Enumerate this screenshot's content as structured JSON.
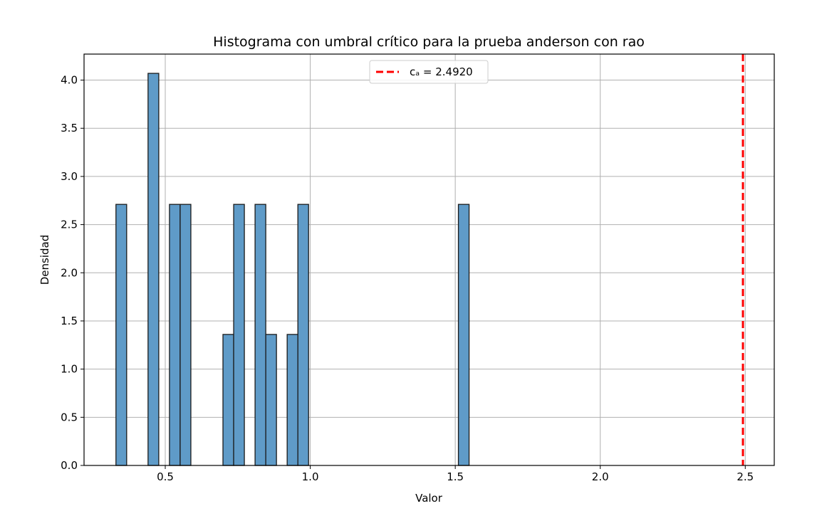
{
  "chart_data": {
    "type": "bar",
    "title": "Histograma con umbral crítico para la prueba anderson con  rao",
    "xlabel": "Valor",
    "ylabel": "Densidad",
    "xlim": [
      0.22,
      2.6
    ],
    "ylim": [
      0,
      4.27
    ],
    "xticks": [
      0.5,
      1.0,
      1.5,
      2.0,
      2.5
    ],
    "xtick_labels": [
      "0.5",
      "1.0",
      "1.5",
      "2.0",
      "2.5"
    ],
    "yticks": [
      0.0,
      0.5,
      1.0,
      1.5,
      2.0,
      2.5,
      3.0,
      3.5,
      4.0
    ],
    "ytick_labels": [
      "0.0",
      "0.5",
      "1.0",
      "1.5",
      "2.0",
      "2.5",
      "3.0",
      "3.5",
      "4.0"
    ],
    "grid": true,
    "bin_start": 0.33,
    "bin_width": 0.0369,
    "values": [
      2.71,
      0,
      0,
      4.07,
      0,
      2.71,
      2.71,
      0,
      0,
      0,
      1.36,
      2.71,
      0,
      2.71,
      1.36,
      0,
      1.36,
      2.71,
      0,
      0,
      0,
      0,
      0,
      0,
      0,
      0,
      0,
      0,
      0,
      0,
      0,
      0,
      2.71
    ],
    "bar_color": "#5f9bc8",
    "bar_edge_color": "#1a1a1a",
    "critical_line": {
      "x": 2.492,
      "color": "#ff0000",
      "style": "dashed",
      "label": "cₐ = 2.4920"
    },
    "legend": {
      "placement": "top-center",
      "entries": [
        "cₐ = 2.4920"
      ]
    }
  }
}
